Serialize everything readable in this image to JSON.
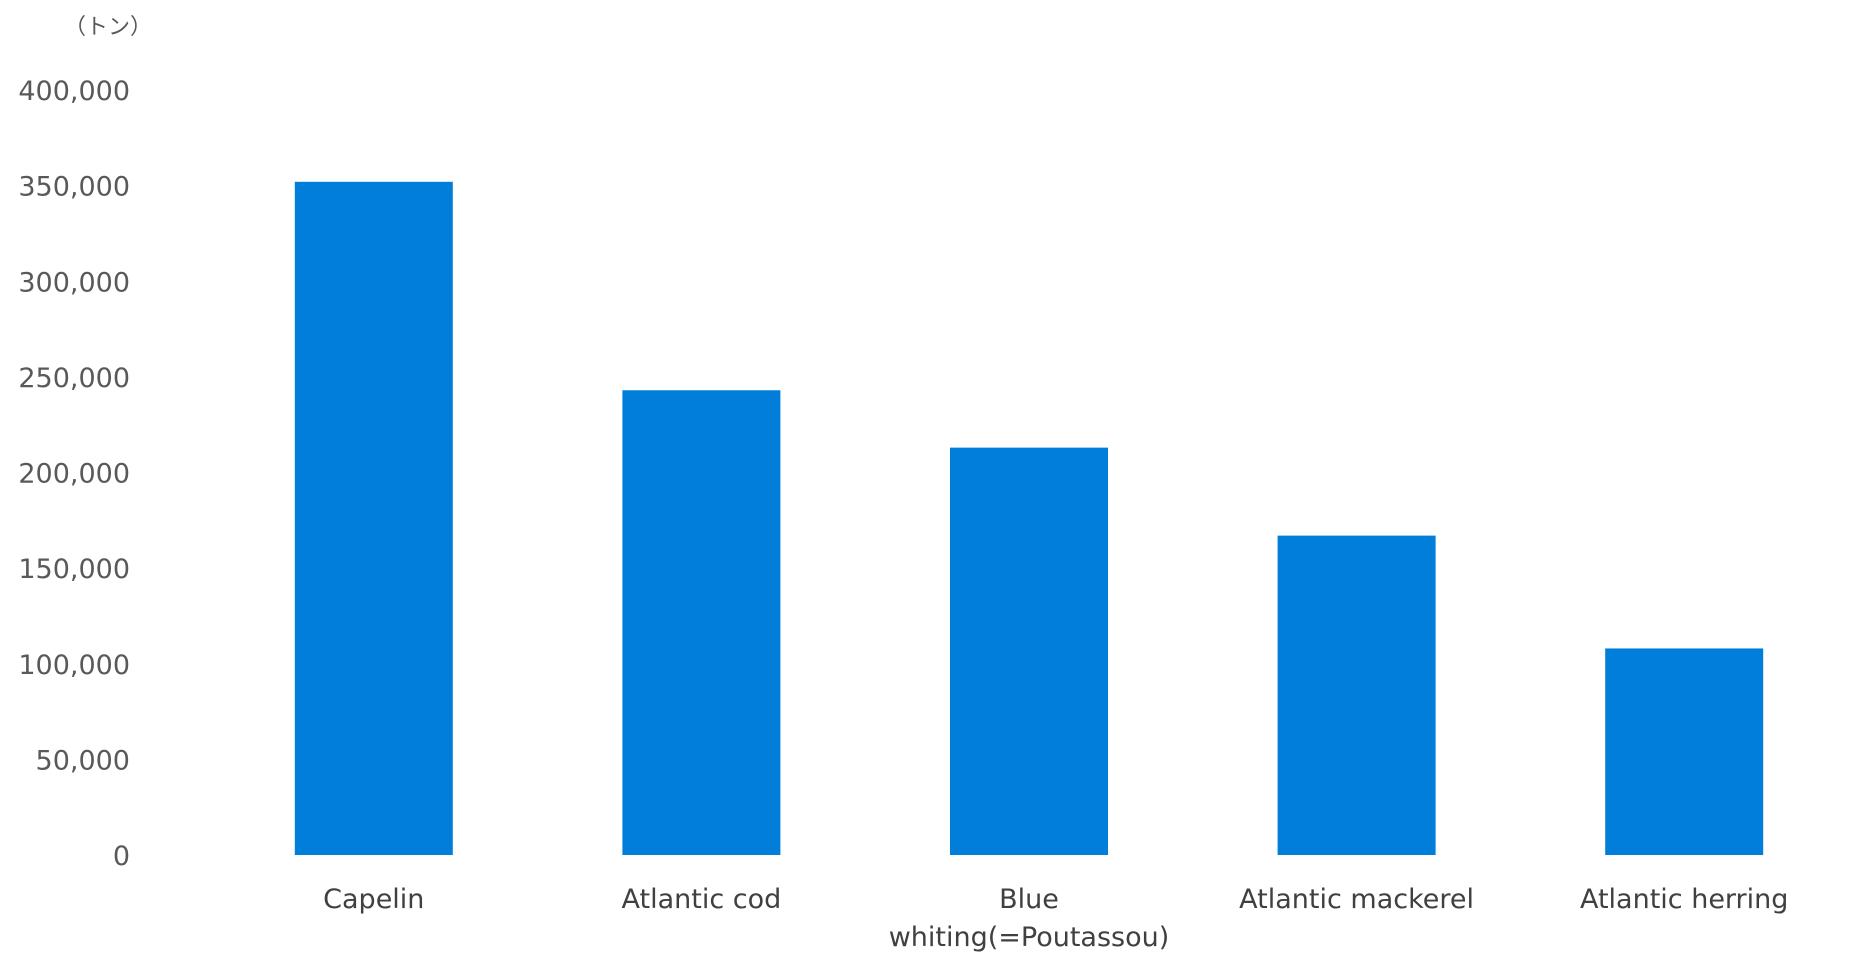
{
  "chart_data": {
    "type": "bar",
    "ylabel": "（トン）",
    "categories": [
      [
        "Capelin"
      ],
      [
        "Atlantic cod"
      ],
      [
        "Blue",
        "whiting(=Poutassou)"
      ],
      [
        "Atlantic mackerel"
      ],
      [
        "Atlantic herring"
      ]
    ],
    "values": [
      352000,
      243000,
      213000,
      167000,
      108000
    ],
    "ylim": [
      0,
      400000
    ],
    "yticks": [
      0,
      50000,
      100000,
      150000,
      200000,
      250000,
      300000,
      350000,
      400000
    ],
    "ytick_labels": [
      "0",
      "50,000",
      "100,000",
      "150,000",
      "200,000",
      "250,000",
      "300,000",
      "350,000",
      "400,000"
    ],
    "grid": false,
    "bar_color": "#007ED9"
  }
}
